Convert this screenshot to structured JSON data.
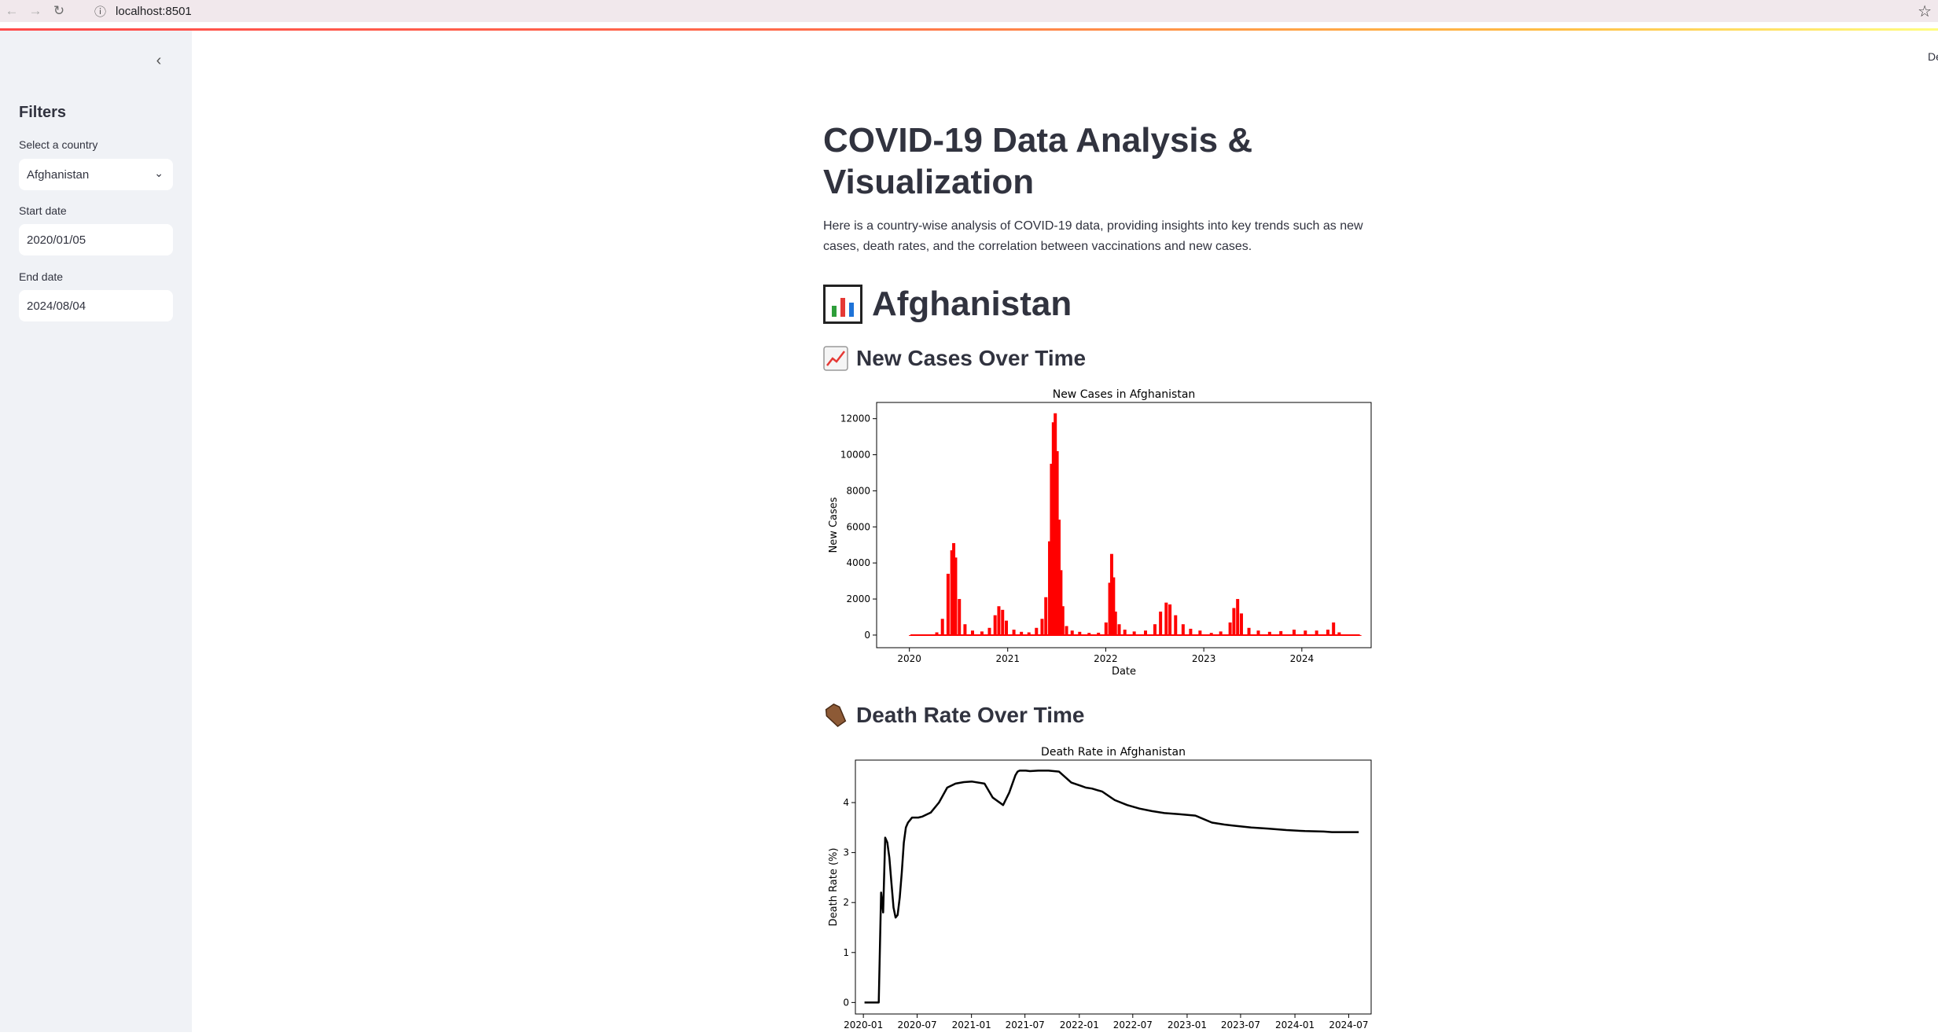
{
  "browser": {
    "url": "localhost:8501",
    "back_icon": "arrow-left-icon",
    "forward_icon": "arrow-right-icon",
    "reload_icon": "reload-icon",
    "info_icon": "info-icon",
    "bookmark_icon": "star-icon"
  },
  "header": {
    "deploy_label": "De"
  },
  "sidebar": {
    "title": "Filters",
    "country_label": "Select a country",
    "country_value": "Afghanistan",
    "start_label": "Start date",
    "start_value": "2020/01/05",
    "end_label": "End date",
    "end_value": "2024/08/04"
  },
  "main": {
    "title": "COVID-19 Data Analysis & Visualization",
    "intro": "Here is a country-wise analysis of COVID-19 data, providing insights into key trends such as new cases, death rates, and the correlation between vaccinations and new cases.",
    "country_heading": "Afghanistan",
    "section1": "New Cases Over Time",
    "section2": "Death Rate Over Time"
  },
  "chart_data": [
    {
      "type": "bar",
      "title": "New Cases in Afghanistan",
      "xlabel": "Date",
      "ylabel": "New Cases",
      "color": "#ff0000",
      "ylim": [
        -700,
        12900
      ],
      "xlim": [
        "2019-09-01",
        "2024-09-15"
      ],
      "yticks": [
        0,
        2000,
        4000,
        6000,
        8000,
        10000,
        12000
      ],
      "xticks": [
        "2020",
        "2021",
        "2022",
        "2023",
        "2024"
      ],
      "xtick_dates": [
        "2020-01-01",
        "2021-01-01",
        "2022-01-01",
        "2023-01-01",
        "2024-01-01"
      ],
      "series": [
        {
          "x": [
            "2020-01-05",
            "2020-03-01",
            "2020-04-12",
            "2020-05-03",
            "2020-05-24",
            "2020-06-07",
            "2020-06-14",
            "2020-06-21",
            "2020-07-05",
            "2020-07-26",
            "2020-08-23",
            "2020-09-27",
            "2020-10-25",
            "2020-11-15",
            "2020-11-29",
            "2020-12-13",
            "2020-12-27",
            "2021-01-24",
            "2021-02-21",
            "2021-03-21",
            "2021-04-18",
            "2021-05-09",
            "2021-05-23",
            "2021-06-06",
            "2021-06-13",
            "2021-06-20",
            "2021-06-27",
            "2021-07-04",
            "2021-07-11",
            "2021-07-18",
            "2021-07-25",
            "2021-08-08",
            "2021-08-29",
            "2021-09-26",
            "2021-10-31",
            "2021-12-05",
            "2022-01-02",
            "2022-01-16",
            "2022-01-23",
            "2022-01-30",
            "2022-02-06",
            "2022-02-20",
            "2022-03-13",
            "2022-04-17",
            "2022-05-29",
            "2022-07-03",
            "2022-07-24",
            "2022-08-14",
            "2022-08-28",
            "2022-09-18",
            "2022-10-16",
            "2022-11-13",
            "2022-12-18",
            "2023-01-29",
            "2023-03-05",
            "2023-04-09",
            "2023-04-23",
            "2023-05-07",
            "2023-05-21",
            "2023-06-18",
            "2023-07-23",
            "2023-09-03",
            "2023-10-15",
            "2023-12-03",
            "2024-01-14",
            "2024-02-25",
            "2024-04-07",
            "2024-04-28",
            "2024-05-19",
            "2024-06-16",
            "2024-08-04"
          ],
          "values": [
            0,
            0,
            150,
            900,
            3400,
            4700,
            5100,
            4300,
            2000,
            600,
            250,
            200,
            400,
            1100,
            1600,
            1400,
            800,
            300,
            180,
            150,
            400,
            900,
            2100,
            5200,
            9500,
            11800,
            12300,
            10200,
            6400,
            3600,
            1600,
            500,
            250,
            180,
            120,
            130,
            700,
            2900,
            4500,
            3200,
            1300,
            600,
            300,
            200,
            250,
            600,
            1300,
            1800,
            1700,
            1100,
            600,
            350,
            250,
            120,
            200,
            700,
            1500,
            2000,
            1200,
            400,
            250,
            180,
            220,
            300,
            250,
            250,
            300,
            700,
            150,
            30,
            0
          ]
        }
      ]
    },
    {
      "type": "line",
      "title": "Death Rate in Afghanistan",
      "xlabel": "",
      "ylabel": "Death Rate (%)",
      "color": "#000000",
      "ylim": [
        -0.23,
        4.85
      ],
      "xlim": [
        "2019-12-05",
        "2024-09-15"
      ],
      "yticks": [
        0,
        1,
        2,
        3,
        4
      ],
      "xticks": [
        "2020-01",
        "2020-07",
        "2021-01",
        "2021-07",
        "2022-01",
        "2022-07",
        "2023-01",
        "2023-07",
        "2024-01",
        "2024-07"
      ],
      "xtick_dates": [
        "2020-01-01",
        "2020-07-01",
        "2021-01-01",
        "2021-07-01",
        "2022-01-01",
        "2022-07-01",
        "2023-01-01",
        "2023-07-01",
        "2024-01-01",
        "2024-07-01"
      ],
      "series": [
        {
          "x": [
            "2020-01-05",
            "2020-02-22",
            "2020-03-01",
            "2020-03-08",
            "2020-03-15",
            "2020-03-22",
            "2020-03-29",
            "2020-04-05",
            "2020-04-12",
            "2020-04-19",
            "2020-04-26",
            "2020-05-03",
            "2020-05-10",
            "2020-05-17",
            "2020-05-24",
            "2020-05-31",
            "2020-06-07",
            "2020-06-14",
            "2020-06-21",
            "2020-07-05",
            "2020-07-19",
            "2020-08-16",
            "2020-09-13",
            "2020-10-11",
            "2020-11-08",
            "2020-12-06",
            "2021-01-03",
            "2021-02-14",
            "2021-03-14",
            "2021-04-18",
            "2021-05-09",
            "2021-05-30",
            "2021-06-06",
            "2021-06-13",
            "2021-06-20",
            "2021-07-04",
            "2021-07-18",
            "2021-08-15",
            "2021-09-19",
            "2021-10-24",
            "2021-12-05",
            "2022-01-09",
            "2022-01-23",
            "2022-02-13",
            "2022-03-20",
            "2022-05-01",
            "2022-06-12",
            "2022-07-24",
            "2022-09-04",
            "2022-10-16",
            "2022-12-04",
            "2023-01-29",
            "2023-03-26",
            "2023-05-07",
            "2023-06-04",
            "2023-08-06",
            "2023-10-01",
            "2023-12-03",
            "2024-02-04",
            "2024-04-07",
            "2024-05-05",
            "2024-08-04"
          ],
          "values": [
            0,
            0,
            2.2,
            1.8,
            3.3,
            3.2,
            2.9,
            2.4,
            1.9,
            1.7,
            1.75,
            2.1,
            2.6,
            3.2,
            3.5,
            3.6,
            3.65,
            3.7,
            3.7,
            3.7,
            3.72,
            3.8,
            4.0,
            4.3,
            4.38,
            4.41,
            4.42,
            4.38,
            4.1,
            3.95,
            4.2,
            4.55,
            4.62,
            4.64,
            4.64,
            4.64,
            4.63,
            4.64,
            4.64,
            4.62,
            4.4,
            4.33,
            4.3,
            4.28,
            4.22,
            4.05,
            3.95,
            3.88,
            3.83,
            3.79,
            3.77,
            3.74,
            3.6,
            3.56,
            3.54,
            3.5,
            3.48,
            3.45,
            3.43,
            3.42,
            3.41,
            3.41
          ]
        }
      ]
    }
  ]
}
